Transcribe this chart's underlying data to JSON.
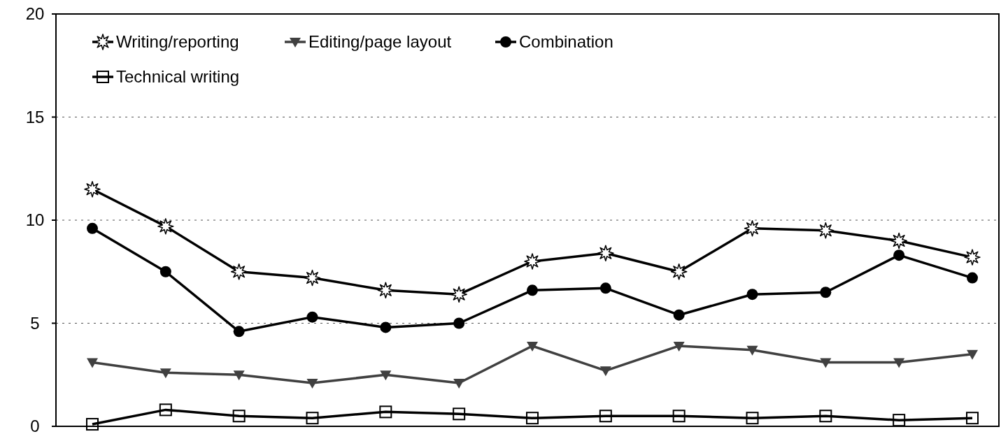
{
  "chart_data": {
    "type": "line",
    "categories": [
      null,
      null,
      null,
      null,
      null,
      null,
      null,
      null,
      null,
      null,
      null,
      null,
      null
    ],
    "series": [
      {
        "name": "Writing/reporting",
        "color": "#000000",
        "marker": "star",
        "values": [
          11.5,
          9.7,
          7.5,
          7.2,
          6.6,
          6.4,
          8.0,
          8.4,
          7.5,
          9.6,
          9.5,
          9.0,
          8.2
        ]
      },
      {
        "name": "Editing/page layout",
        "color": "#404040",
        "marker": "triangle",
        "values": [
          3.1,
          2.6,
          2.5,
          2.1,
          2.5,
          2.1,
          3.9,
          2.7,
          3.9,
          3.7,
          3.1,
          3.1,
          3.5
        ]
      },
      {
        "name": "Combination",
        "color": "#000000",
        "marker": "circle",
        "values": [
          9.6,
          7.5,
          4.6,
          5.3,
          4.8,
          5.0,
          6.6,
          6.7,
          5.4,
          6.4,
          6.5,
          8.3,
          7.2
        ]
      },
      {
        "name": "Technical writing",
        "color": "#000000",
        "marker": "square",
        "values": [
          0.1,
          0.8,
          0.5,
          0.4,
          0.7,
          0.6,
          0.4,
          0.5,
          0.5,
          0.4,
          0.5,
          0.3,
          0.4
        ]
      }
    ],
    "ylim": [
      0,
      20
    ],
    "yticks": [
      0,
      5,
      10,
      15,
      20
    ],
    "grid": "y",
    "legend": "top left",
    "tick_labels": "y",
    "line_style": "solid"
  }
}
